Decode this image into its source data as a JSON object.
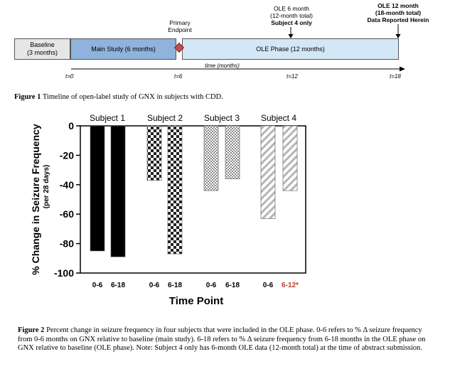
{
  "timeline": {
    "baseline_label": "Baseline\n(3 months)",
    "main_study_label": "Main Study (6 months)",
    "ole_phase_label": "OLE Phase (12 months)",
    "primary_endpoint_label": "Primary\nEndpoint",
    "ole6_label_line1": "OLE 6 month",
    "ole6_label_line2": "(12-month total)",
    "ole6_label_line3": "Subject 4 only",
    "ole12_label_line1": "OLE 12 month",
    "ole12_label_line2": "(18-month total)",
    "ole12_label_line3": "Data Reported Herein",
    "time_axis_label": "time (months)",
    "ticks": [
      "t=0",
      "t=6",
      "t=12",
      "t=18"
    ],
    "colors": {
      "baseline": "#e6e6e6",
      "main": "#8fb3dc",
      "ole": "#d3e7f6",
      "endpoint": "#c0504d"
    }
  },
  "figure1_caption": {
    "label": "Figure 1",
    "text": " Timeline of open-label study of GNX in subjects with CDD."
  },
  "chart_data": {
    "type": "bar",
    "subjects": [
      "Subject 1",
      "Subject 2",
      "Subject 3",
      "Subject 4"
    ],
    "categories": [
      "0-6",
      "6-18",
      "0-6",
      "6-18",
      "0-6",
      "6-18",
      "0-6",
      "6-12*"
    ],
    "values": [
      -85,
      -89,
      -37,
      -87,
      -44,
      -36,
      -63,
      -44
    ],
    "patterns": [
      "solid",
      "solid",
      "checker",
      "checker",
      "fine-checker",
      "fine-checker",
      "diagonal",
      "diagonal"
    ],
    "highlight_category_color": "#c0392b",
    "ylabel": "% Change in Seizure  Frequency",
    "ylabel_sub": "(per 28 days)",
    "xlabel": "Time Point",
    "ylim": [
      -100,
      0
    ],
    "yticks": [
      "0",
      "-20",
      "-40",
      "-60",
      "-80",
      "-100"
    ],
    "grid": false
  },
  "figure2_caption": {
    "label": "Figure 2",
    "text": " Percent change in seizure frequency in four subjects that were included in the OLE phase.  0-6 refers to % Δ seizure frequency from 0-6 months on GNX relative to baseline (main study).  6-18 refers to % Δ seizure frequency from 6-18 months in the OLE phase on GNX relative to baseline (OLE phase).  Note: Subject 4 only has 6-month OLE data (12-month total) at the time of abstract submission."
  }
}
